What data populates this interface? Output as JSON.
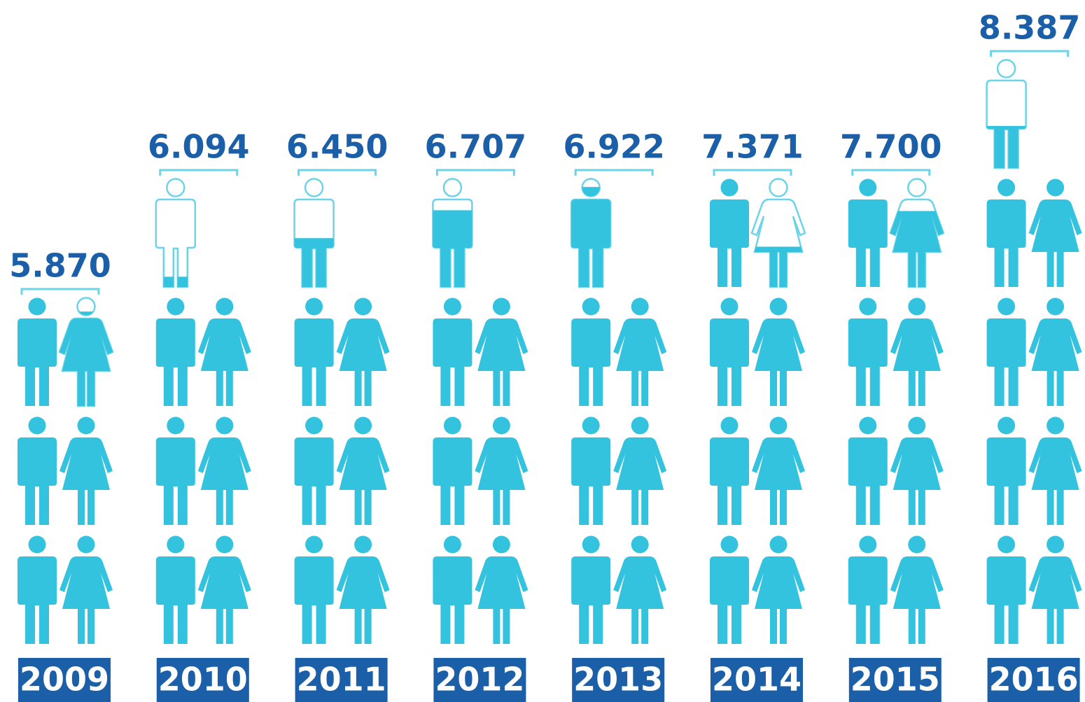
{
  "chart_data": {
    "type": "pictogram",
    "categories": [
      "2009",
      "2010",
      "2011",
      "2012",
      "2013",
      "2014",
      "2015",
      "2016"
    ],
    "values": [
      5.87,
      6.094,
      6.45,
      6.707,
      6.922,
      7.371,
      7.7,
      8.387
    ],
    "value_labels": [
      "5.870",
      "6.094",
      "6.450",
      "6.707",
      "6.922",
      "7.371",
      "7.700",
      "8.387"
    ],
    "color": "#34c3de"
  }
}
